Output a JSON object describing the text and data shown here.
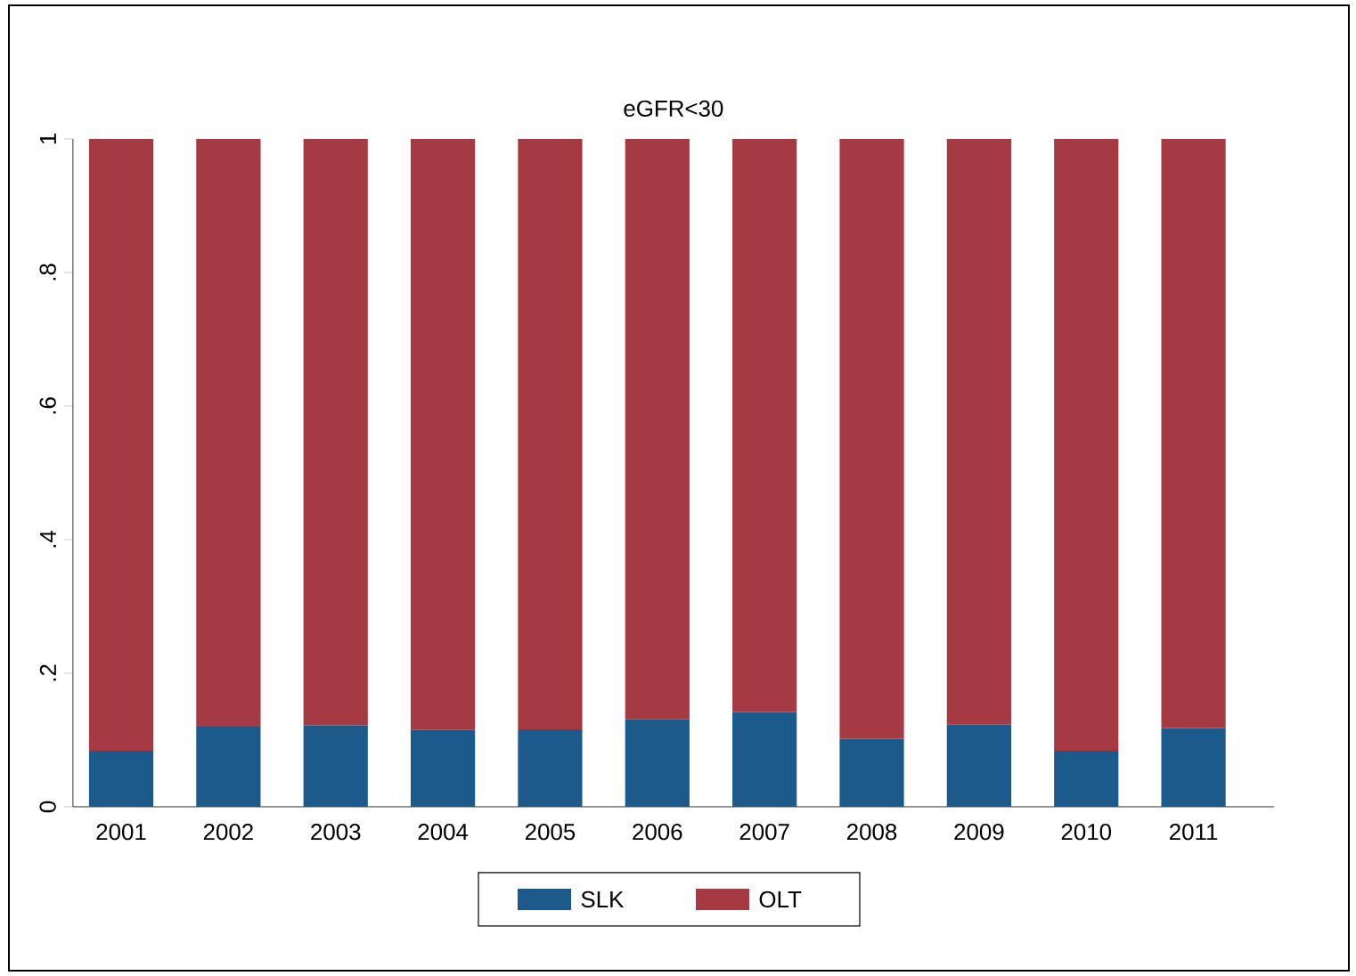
{
  "chart_data": {
    "type": "bar",
    "title": "eGFR<30",
    "stacked": true,
    "legend": "bottom",
    "categories": [
      "2001",
      "2002",
      "2003",
      "2004",
      "2005",
      "2006",
      "2007",
      "2008",
      "2009",
      "2010",
      "2011"
    ],
    "series": [
      {
        "name": "SLK",
        "color": "#1c5a8c",
        "values": [
          0.084,
          0.12,
          0.122,
          0.115,
          0.116,
          0.131,
          0.142,
          0.102,
          0.123,
          0.084,
          0.118
        ]
      },
      {
        "name": "OLT",
        "color": "#a63a42",
        "values": [
          0.916,
          0.88,
          0.878,
          0.885,
          0.884,
          0.869,
          0.858,
          0.898,
          0.877,
          0.916,
          0.882
        ]
      }
    ],
    "ylim": [
      0,
      1
    ],
    "yticks": [
      0,
      {
        "value": 0.2,
        "label": ".2"
      },
      {
        "value": 0.4,
        "label": ".4"
      },
      {
        "value": 0.6,
        "label": ".6"
      },
      {
        "value": 0.8,
        "label": ".8"
      },
      1
    ]
  }
}
